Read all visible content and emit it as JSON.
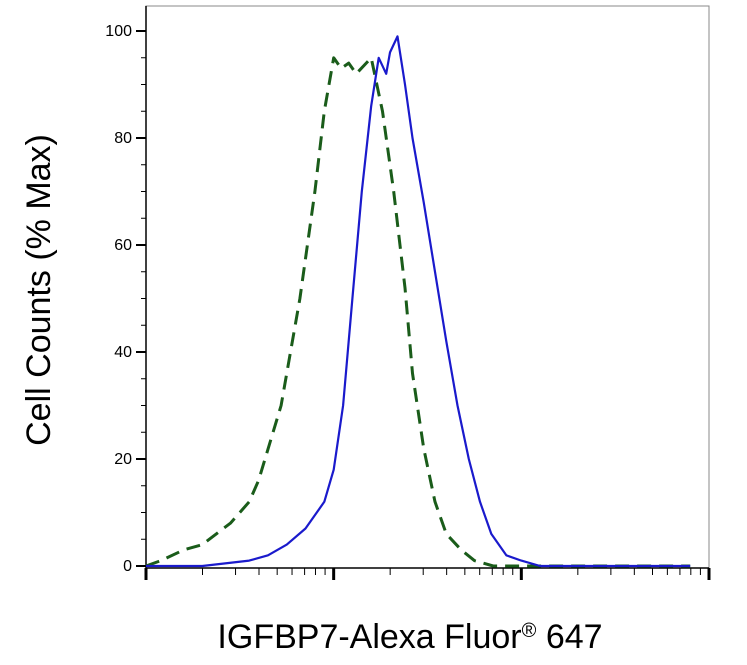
{
  "chart_data": {
    "type": "line",
    "xlabel": "IGFBP7-Alexa Fluor",
    "xlabel_mark": "®",
    "xlabel_suffix": " 647",
    "ylabel": "Cell Counts (% Max)",
    "x_scale": "log",
    "x_major_decades": 3,
    "ylim": [
      0,
      100
    ],
    "y_ticks": [
      0,
      20,
      40,
      60,
      80,
      100
    ],
    "y_tick_labels": [
      "0",
      "20",
      "40",
      "60",
      "80",
      "100"
    ],
    "grid": false,
    "series": [
      {
        "style": "dashed",
        "color": "#1a5c1a",
        "x": [
          0,
          0.08,
          0.2,
          0.3,
          0.45,
          0.55,
          0.6,
          0.72,
          0.82,
          0.9,
          0.95,
          1.0,
          1.04,
          1.08,
          1.12,
          1.2,
          1.26,
          1.32,
          1.38,
          1.42,
          1.48,
          1.54,
          1.6,
          1.68,
          1.75,
          1.85,
          1.95,
          2.1,
          2.3,
          2.6,
          2.9
        ],
        "values": [
          0,
          1,
          3,
          4,
          8,
          12,
          16,
          30,
          50,
          70,
          85,
          95,
          93,
          94,
          92,
          95,
          85,
          70,
          52,
          36,
          22,
          12,
          6,
          3,
          1,
          0,
          0,
          0,
          0,
          0,
          0
        ]
      },
      {
        "style": "solid",
        "color": "#1a1acc",
        "x": [
          0,
          0.3,
          0.55,
          0.65,
          0.75,
          0.85,
          0.95,
          1.0,
          1.05,
          1.1,
          1.15,
          1.2,
          1.24,
          1.28,
          1.3,
          1.34,
          1.38,
          1.42,
          1.48,
          1.54,
          1.6,
          1.66,
          1.72,
          1.78,
          1.84,
          1.92,
          2.0,
          2.1,
          2.3,
          2.6,
          2.9
        ],
        "values": [
          0,
          0,
          1,
          2,
          4,
          7,
          12,
          18,
          30,
          50,
          70,
          86,
          95,
          92,
          96,
          99,
          90,
          80,
          68,
          55,
          42,
          30,
          20,
          12,
          6,
          2,
          1,
          0,
          0,
          0,
          0
        ]
      }
    ]
  }
}
